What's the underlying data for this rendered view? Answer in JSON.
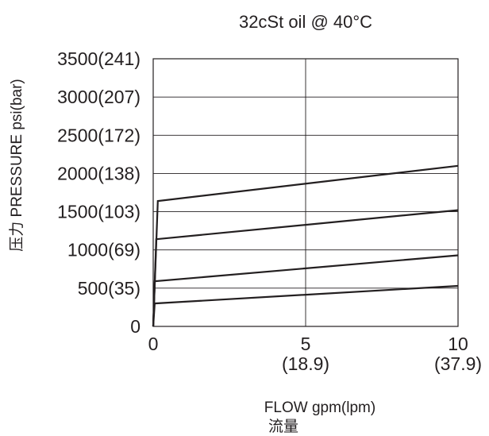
{
  "chart_data": {
    "type": "line",
    "title": "32cSt  oil @ 40°C",
    "xlabel": "FLOW gpm(lpm)",
    "xlabel_cn": "流量",
    "ylabel": "压力 PRESSURE psi(bar)",
    "xlim": [
      0,
      10
    ],
    "ylim": [
      0,
      3500
    ],
    "grid": true,
    "x_ticks": [
      {
        "value": 0,
        "label": "0",
        "sub": ""
      },
      {
        "value": 5,
        "label": "5",
        "sub": "(18.9)"
      },
      {
        "value": 10,
        "label": "10",
        "sub": "(37.9)"
      }
    ],
    "y_ticks": [
      {
        "value": 0,
        "label": "0"
      },
      {
        "value": 500,
        "label": "500(35)"
      },
      {
        "value": 1000,
        "label": "1000(69)"
      },
      {
        "value": 1500,
        "label": "1500(103)"
      },
      {
        "value": 2000,
        "label": "2000(138)"
      },
      {
        "value": 2500,
        "label": "2500(172)"
      },
      {
        "value": 3000,
        "label": "3000(207)"
      },
      {
        "value": 3500,
        "label": "3500(241)"
      }
    ],
    "series": [
      {
        "points": [
          [
            0,
            0
          ],
          [
            0.15,
            1640
          ],
          [
            10,
            2100
          ]
        ]
      },
      {
        "points": [
          [
            0,
            0
          ],
          [
            0.1,
            1140
          ],
          [
            10,
            1520
          ]
        ]
      },
      {
        "points": [
          [
            0,
            0
          ],
          [
            0.05,
            590
          ],
          [
            10,
            930
          ]
        ]
      },
      {
        "points": [
          [
            0,
            0
          ],
          [
            0.05,
            300
          ],
          [
            10,
            530
          ]
        ]
      }
    ]
  }
}
